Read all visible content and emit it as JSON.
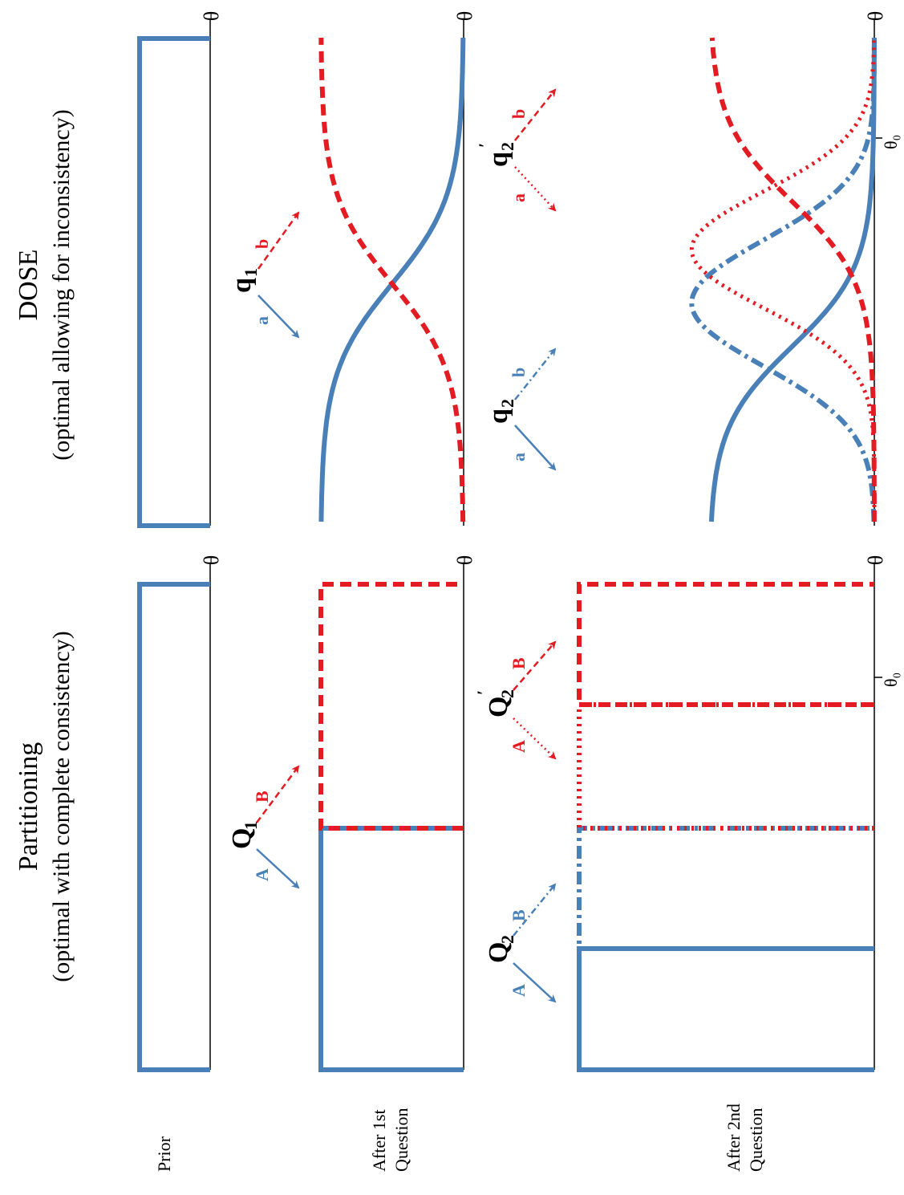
{
  "colors": {
    "blue": "#4a80b8",
    "red": "#e31b23",
    "axis": "#000000"
  },
  "row_labels": {
    "prior": "Prior",
    "after1_line1": "After 1st",
    "after1_line2": "Question",
    "after2_line1": "After 2nd",
    "after2_line2": "Question"
  },
  "partitioning": {
    "title": "Partitioning",
    "subtitle": "(optimal with complete consistency)",
    "q1": {
      "label": "Q",
      "sub": "1",
      "branch_a": "A",
      "branch_b": "B"
    },
    "q2": {
      "label": "Q",
      "sub": "2",
      "branch_a": "A",
      "branch_b": "B"
    },
    "q2p": {
      "label": "Q",
      "sub": "2",
      "prime": "′",
      "branch_a": "A",
      "branch_b": "B"
    },
    "theta": "θ",
    "theta0": "θ₀"
  },
  "dose": {
    "title": "DOSE",
    "subtitle": "(optimal allowing for inconsistency)",
    "q1": {
      "label": "q",
      "sub": "1",
      "branch_a": "a",
      "branch_b": "b"
    },
    "q2": {
      "label": "q",
      "sub": "2",
      "branch_a": "a",
      "branch_b": "b"
    },
    "q2p": {
      "label": "q",
      "sub": "2",
      "prime": "′",
      "branch_a": "a",
      "branch_b": "b"
    },
    "theta": "θ",
    "theta0": "θ₀"
  }
}
